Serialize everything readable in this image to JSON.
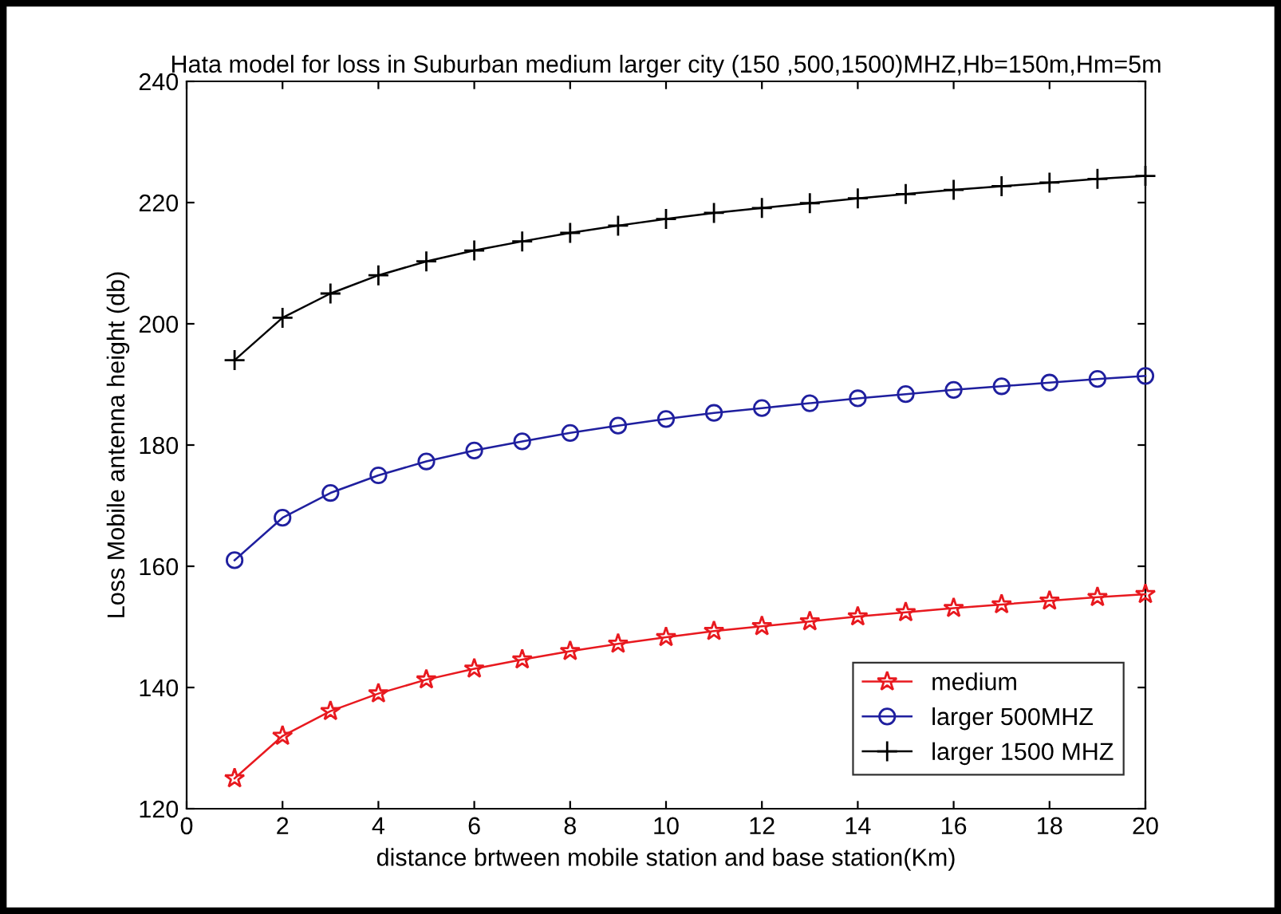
{
  "chart_data": {
    "type": "line",
    "title": "Hata model for loss in Suburban medium larger city (150 ,500,1500)MHZ,Hb=150m,Hm=5m",
    "xlabel": "distance brtween mobile station and base station(Km)",
    "ylabel": "Loss Mobile antenna height (db)",
    "x": [
      1,
      2,
      3,
      4,
      5,
      6,
      7,
      8,
      9,
      10,
      11,
      12,
      13,
      14,
      15,
      16,
      17,
      18,
      19,
      20
    ],
    "series": [
      {
        "name": "medium",
        "color": "#e8191f",
        "marker": "star",
        "values": [
          125,
          132,
          136.1,
          139,
          141.3,
          143.1,
          144.6,
          146,
          147.2,
          148.3,
          149.3,
          150.1,
          150.9,
          151.7,
          152.4,
          153.1,
          153.7,
          154.3,
          154.9,
          155.4
        ]
      },
      {
        "name": "larger 500MHZ",
        "color": "#1f1f9f",
        "marker": "circle",
        "values": [
          161,
          168,
          172.1,
          175,
          177.3,
          179.1,
          180.6,
          182,
          183.2,
          184.3,
          185.3,
          186.1,
          186.9,
          187.7,
          188.4,
          189.1,
          189.7,
          190.3,
          190.9,
          191.4
        ]
      },
      {
        "name": "larger 1500 MHZ",
        "color": "#000000",
        "marker": "cross",
        "values": [
          194,
          201,
          205,
          208,
          210.3,
          212.1,
          213.6,
          215,
          216.2,
          217.3,
          218.3,
          219.1,
          219.9,
          220.7,
          221.4,
          222.1,
          222.7,
          223.3,
          223.9,
          224.4
        ]
      }
    ],
    "xlim": [
      0,
      20
    ],
    "xticks": [
      0,
      2,
      4,
      6,
      8,
      10,
      12,
      14,
      16,
      18,
      20
    ],
    "ylim": [
      120,
      240
    ],
    "yticks": [
      120,
      140,
      160,
      180,
      200,
      220,
      240
    ],
    "grid": false,
    "legend": "bottom right",
    "line_style": "solid"
  }
}
